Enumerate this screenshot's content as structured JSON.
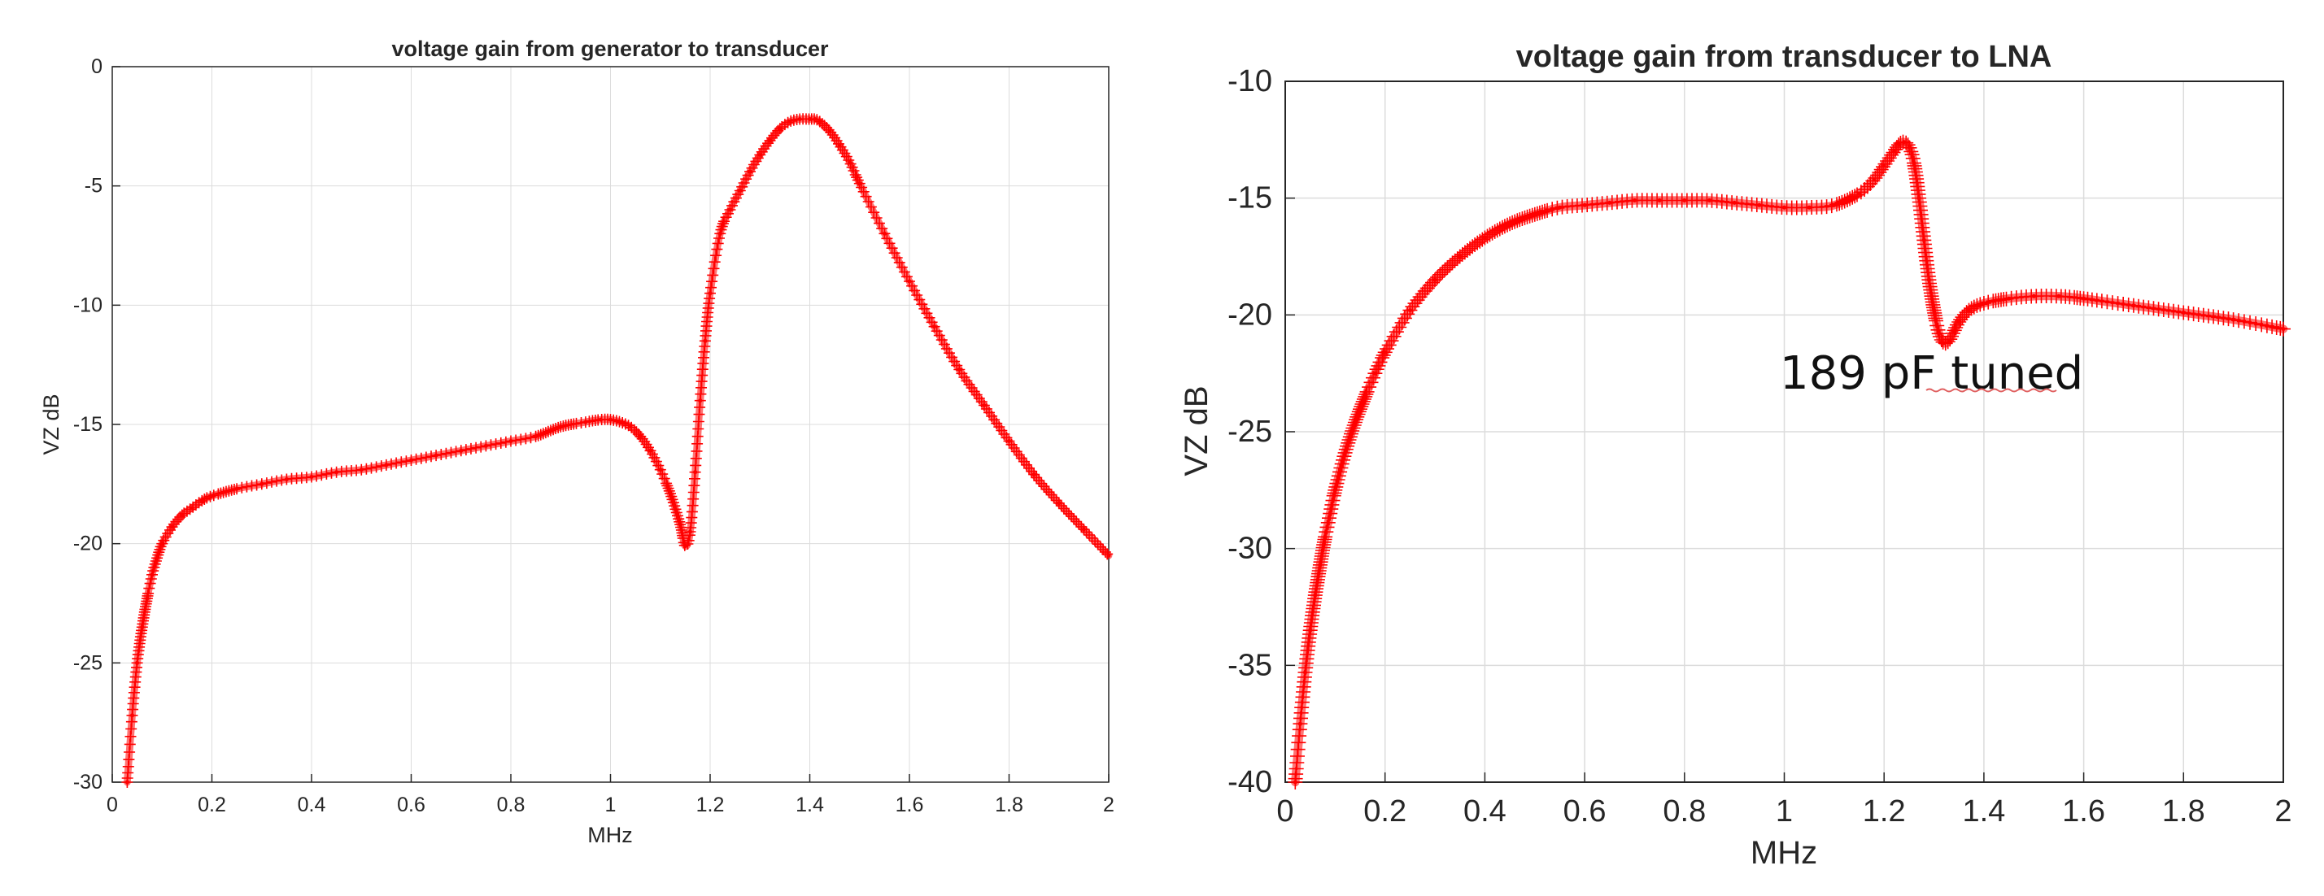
{
  "colors": {
    "series": "#ff0000",
    "grid": "#dcdcdc",
    "axis": "#262626",
    "annotation_underline": "#e06060"
  },
  "chart_data": [
    {
      "type": "line",
      "title": "voltage gain from generator to transducer",
      "xlabel": "MHz",
      "ylabel": "VZ dB",
      "xlim": [
        0,
        2
      ],
      "ylim": [
        -30,
        0
      ],
      "xticks": [
        "0",
        "0.2",
        "0.4",
        "0.6",
        "0.8",
        "1",
        "1.2",
        "1.4",
        "1.6",
        "1.8",
        "2"
      ],
      "yticks": [
        "0",
        "-5",
        "-10",
        "-15",
        "-20",
        "-25",
        "-30"
      ],
      "grid": true,
      "marker": "+",
      "series": [
        {
          "x": [
            0.03,
            0.04,
            0.05,
            0.06,
            0.07,
            0.08,
            0.09,
            0.1,
            0.12,
            0.14,
            0.16,
            0.18,
            0.2,
            0.25,
            0.3,
            0.35,
            0.4,
            0.45,
            0.5,
            0.55,
            0.6,
            0.65,
            0.7,
            0.75,
            0.8,
            0.85,
            0.9,
            0.95,
            0.98,
            1.0,
            1.02,
            1.04,
            1.06,
            1.08,
            1.1,
            1.12,
            1.14,
            1.15,
            1.16,
            1.17,
            1.18,
            1.19,
            1.2,
            1.22,
            1.24,
            1.26,
            1.28,
            1.3,
            1.32,
            1.34,
            1.36,
            1.38,
            1.4,
            1.41,
            1.42,
            1.44,
            1.46,
            1.48,
            1.5,
            1.55,
            1.6,
            1.65,
            1.7,
            1.75,
            1.8,
            1.85,
            1.9,
            1.95,
            2.0
          ],
          "y": [
            -30.0,
            -27.2,
            -25.0,
            -23.5,
            -22.3,
            -21.3,
            -20.6,
            -20.0,
            -19.3,
            -18.8,
            -18.5,
            -18.2,
            -18.0,
            -17.7,
            -17.5,
            -17.3,
            -17.2,
            -17.0,
            -16.9,
            -16.7,
            -16.5,
            -16.3,
            -16.1,
            -15.9,
            -15.7,
            -15.5,
            -15.1,
            -14.9,
            -14.8,
            -14.8,
            -14.9,
            -15.1,
            -15.5,
            -16.1,
            -16.9,
            -17.9,
            -19.2,
            -20.1,
            -19.5,
            -17.0,
            -14.0,
            -11.5,
            -9.5,
            -7.0,
            -6.0,
            -5.2,
            -4.4,
            -3.7,
            -3.1,
            -2.6,
            -2.3,
            -2.2,
            -2.2,
            -2.2,
            -2.3,
            -2.7,
            -3.3,
            -4.0,
            -4.9,
            -7.0,
            -9.0,
            -10.9,
            -12.7,
            -14.2,
            -15.7,
            -17.1,
            -18.3,
            -19.4,
            -20.5
          ]
        }
      ]
    },
    {
      "type": "line",
      "title": "voltage gain from transducer  to LNA",
      "xlabel": "MHz",
      "ylabel": "VZ dB",
      "xlim": [
        0,
        2
      ],
      "ylim": [
        -40,
        -10
      ],
      "xticks": [
        "0",
        "0.2",
        "0.4",
        "0.6",
        "0.8",
        "1",
        "1.2",
        "1.4",
        "1.6",
        "1.8",
        "2"
      ],
      "yticks": [
        "-10",
        "-15",
        "-20",
        "-25",
        "-30",
        "-35",
        "-40"
      ],
      "grid": true,
      "marker": "+",
      "annotation": "189 pF tuned",
      "series": [
        {
          "x": [
            0.02,
            0.03,
            0.04,
            0.05,
            0.06,
            0.07,
            0.08,
            0.09,
            0.1,
            0.12,
            0.14,
            0.16,
            0.18,
            0.2,
            0.25,
            0.3,
            0.35,
            0.4,
            0.45,
            0.5,
            0.55,
            0.6,
            0.65,
            0.7,
            0.75,
            0.8,
            0.85,
            0.9,
            0.95,
            1.0,
            1.05,
            1.1,
            1.15,
            1.18,
            1.2,
            1.22,
            1.23,
            1.24,
            1.25,
            1.26,
            1.27,
            1.28,
            1.29,
            1.3,
            1.31,
            1.32,
            1.33,
            1.34,
            1.35,
            1.37,
            1.4,
            1.45,
            1.5,
            1.55,
            1.6,
            1.7,
            1.8,
            1.9,
            2.0
          ],
          "y": [
            -40.0,
            -37.5,
            -35.3,
            -33.5,
            -32.0,
            -30.7,
            -29.5,
            -28.5,
            -27.5,
            -25.9,
            -24.6,
            -23.5,
            -22.5,
            -21.6,
            -19.8,
            -18.5,
            -17.5,
            -16.7,
            -16.1,
            -15.7,
            -15.4,
            -15.3,
            -15.2,
            -15.1,
            -15.1,
            -15.1,
            -15.1,
            -15.2,
            -15.3,
            -15.4,
            -15.4,
            -15.3,
            -14.8,
            -14.2,
            -13.6,
            -13.0,
            -12.7,
            -12.6,
            -12.8,
            -13.5,
            -15.0,
            -16.8,
            -18.5,
            -19.8,
            -20.8,
            -21.2,
            -21.1,
            -20.7,
            -20.3,
            -19.8,
            -19.5,
            -19.3,
            -19.2,
            -19.2,
            -19.3,
            -19.6,
            -19.9,
            -20.2,
            -20.6
          ]
        }
      ]
    }
  ]
}
